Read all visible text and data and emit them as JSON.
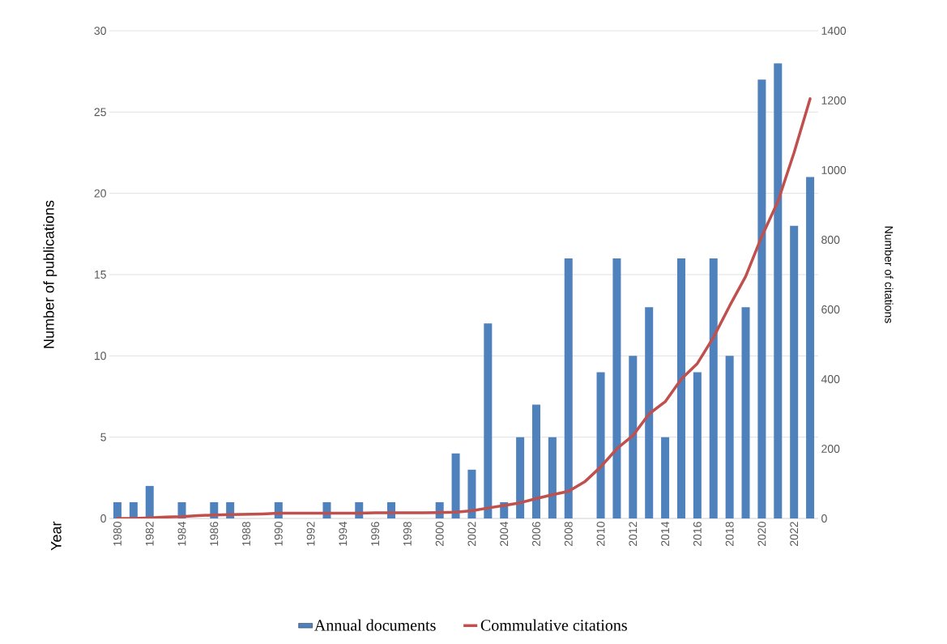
{
  "chart_data": {
    "type": "bar",
    "annotations": [
      "Year"
    ],
    "ylabel": "Number of publications",
    "y2label": "Number of citations",
    "categories": [
      "1980",
      null,
      "1982",
      null,
      "1984",
      null,
      "1986",
      null,
      "1988",
      null,
      "1990",
      null,
      "1992",
      null,
      "1994",
      null,
      "1996",
      null,
      "1998",
      null,
      "2000",
      null,
      "2002",
      null,
      "2004",
      null,
      "2006",
      null,
      "2008",
      null,
      "2010",
      null,
      "2012",
      null,
      "2014",
      null,
      "2016",
      null,
      "2018",
      null,
      "2020",
      null,
      "2022",
      null
    ],
    "series": [
      {
        "name": "Annual documents",
        "type": "bar",
        "color": "#4f81bd",
        "values": [
          1,
          1,
          2,
          0,
          1,
          0,
          1,
          1,
          0,
          0,
          1,
          0,
          0,
          1,
          0,
          1,
          0,
          1,
          0,
          0,
          1,
          4,
          3,
          12,
          1,
          5,
          7,
          5,
          16,
          0,
          9,
          16,
          10,
          13,
          5,
          16,
          9,
          16,
          10,
          13,
          27,
          28,
          18,
          21
        ]
      },
      {
        "name": "Commulative citations",
        "type": "line",
        "axis": "y2",
        "color": "#c0504d",
        "marker": "none",
        "line_style": "solid",
        "values": [
          0,
          0,
          2,
          4,
          5,
          8,
          10,
          11,
          12,
          13,
          15,
          15,
          15,
          15,
          15,
          15,
          16,
          16,
          16,
          16,
          17,
          18,
          22,
          30,
          37,
          45,
          57,
          68,
          78,
          105,
          148,
          200,
          238,
          300,
          335,
          400,
          445,
          520,
          610,
          695,
          810,
          910,
          1050,
          1205
        ]
      }
    ],
    "ylim": [
      0,
      30
    ],
    "yticks": [
      0,
      5,
      10,
      15,
      20,
      25,
      30
    ],
    "y2lim": [
      0,
      1400
    ],
    "y2ticks": [
      0,
      200,
      400,
      600,
      800,
      1000,
      1200,
      1400
    ],
    "grid": "y",
    "legend": "bottom"
  }
}
